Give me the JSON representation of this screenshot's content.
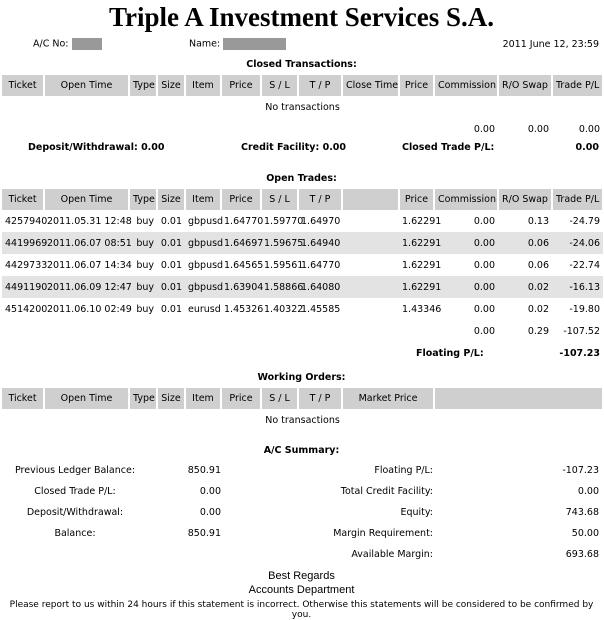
{
  "title": "Triple A Investment Services S.A.",
  "header": {
    "ac_label": "A/C No:",
    "name_label": "Name:",
    "date": "2011 June 12, 23:59"
  },
  "closed": {
    "heading": "Closed Transactions:",
    "columns": [
      "Ticket",
      "Open Time",
      "Type",
      "Size",
      "Item",
      "Price",
      "S / L",
      "T / P",
      "Close Time",
      "Price",
      "Commission",
      "R/O Swap",
      "Trade P/L"
    ],
    "empty": "No transactions",
    "totals": {
      "commission": "0.00",
      "swap": "0.00",
      "pl": "0.00"
    },
    "deposit": "Deposit/Withdrawal: 0.00",
    "credit": "Credit Facility: 0.00",
    "closed_pl_label": "Closed Trade P/L:",
    "closed_pl": "0.00"
  },
  "open": {
    "heading": "Open Trades:",
    "columns": [
      "Ticket",
      "Open Time",
      "Type",
      "Size",
      "Item",
      "Price",
      "S / L",
      "T / P",
      "",
      "Price",
      "Commission",
      "R/O Swap",
      "Trade P/L"
    ],
    "rows": [
      [
        "4257940",
        "2011.05.31 12:48",
        "buy",
        "0.01",
        "gbpusd",
        "1.64770",
        "1.59770",
        "1.64970",
        "",
        "1.62291",
        "0.00",
        "0.13",
        "-24.79"
      ],
      [
        "4419969",
        "2011.06.07 08:51",
        "buy",
        "0.01",
        "gbpusd",
        "1.64697",
        "1.59675",
        "1.64940",
        "",
        "1.62291",
        "0.00",
        "0.06",
        "-24.06"
      ],
      [
        "4429733",
        "2011.06.07 14:34",
        "buy",
        "0.01",
        "gbpusd",
        "1.64565",
        "1.59561",
        "1.64770",
        "",
        "1.62291",
        "0.00",
        "0.06",
        "-22.74"
      ],
      [
        "4491190",
        "2011.06.09 12:47",
        "buy",
        "0.01",
        "gbpusd",
        "1.63904",
        "1.58866",
        "1.64080",
        "",
        "1.62291",
        "0.00",
        "0.02",
        "-16.13"
      ],
      [
        "4514200",
        "2011.06.10 02:49",
        "buy",
        "0.01",
        "eurusd",
        "1.45326",
        "1.40322",
        "1.45585",
        "",
        "1.43346",
        "0.00",
        "0.02",
        "-19.80"
      ]
    ],
    "totals": {
      "commission": "0.00",
      "swap": "0.29",
      "pl": "-107.52"
    },
    "floating_label": "Floating P/L:",
    "floating": "-107.23"
  },
  "working": {
    "heading": "Working Orders:",
    "columns": [
      "Ticket",
      "Open Time",
      "Type",
      "Size",
      "Item",
      "Price",
      "S / L",
      "T / P",
      "Market Price"
    ],
    "empty": "No transactions"
  },
  "summary": {
    "heading": "A/C Summary:",
    "left": [
      [
        "Previous Ledger Balance:",
        "850.91"
      ],
      [
        "Closed Trade P/L:",
        "0.00"
      ],
      [
        "Deposit/Withdrawal:",
        "0.00"
      ],
      [
        "Balance:",
        "850.91"
      ]
    ],
    "right": [
      [
        "Floating P/L:",
        "-107.23"
      ],
      [
        "Total Credit Facility:",
        "0.00"
      ],
      [
        "Equity:",
        "743.68"
      ],
      [
        "Margin Requirement:",
        "50.00"
      ],
      [
        "Available Margin:",
        "693.68"
      ]
    ]
  },
  "footer": {
    "regards": "Best Regards",
    "dept": "Accounts Department",
    "note": "Please report to us within 24 hours if this statement is incorrect. Otherwise this statements will be considered to be confirmed by you."
  }
}
